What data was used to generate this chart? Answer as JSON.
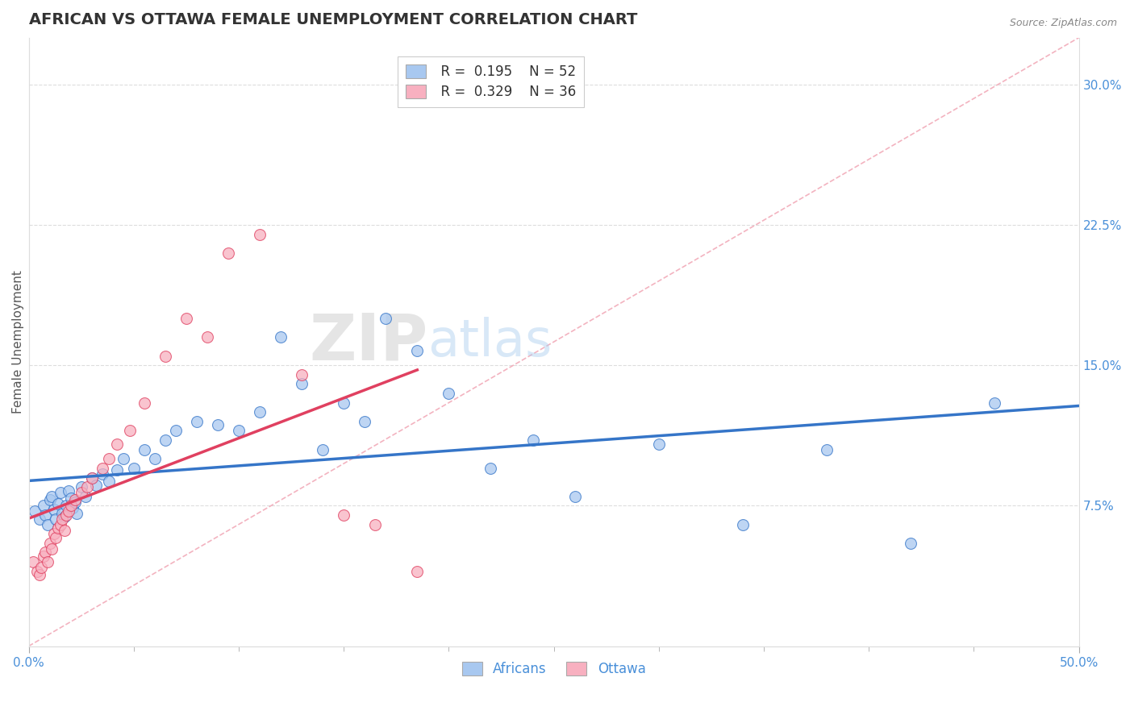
{
  "title": "AFRICAN VS OTTAWA FEMALE UNEMPLOYMENT CORRELATION CHART",
  "source_text": "Source: ZipAtlas.com",
  "ylabel": "Female Unemployment",
  "xlim": [
    0.0,
    0.5
  ],
  "ylim": [
    0.0,
    0.325
  ],
  "yticks_right": [
    0.075,
    0.15,
    0.225,
    0.3
  ],
  "yticklabels_right": [
    "7.5%",
    "15.0%",
    "22.5%",
    "30.0%"
  ],
  "watermark_zip": "ZIP",
  "watermark_atlas": "atlas",
  "legend_label1": "Africans",
  "legend_label2": "Ottawa",
  "color_blue": "#A8C8F0",
  "color_blue_line": "#3575C8",
  "color_pink": "#F8B0C0",
  "color_pink_line": "#E04060",
  "color_diag": "#F0A0B0",
  "africans_x": [
    0.003,
    0.005,
    0.007,
    0.008,
    0.009,
    0.01,
    0.011,
    0.012,
    0.013,
    0.014,
    0.015,
    0.016,
    0.017,
    0.018,
    0.019,
    0.02,
    0.021,
    0.022,
    0.023,
    0.025,
    0.027,
    0.03,
    0.032,
    0.035,
    0.038,
    0.042,
    0.045,
    0.05,
    0.055,
    0.06,
    0.065,
    0.07,
    0.08,
    0.09,
    0.1,
    0.11,
    0.12,
    0.13,
    0.14,
    0.15,
    0.16,
    0.17,
    0.185,
    0.2,
    0.22,
    0.24,
    0.26,
    0.3,
    0.34,
    0.38,
    0.42,
    0.46
  ],
  "africans_y": [
    0.072,
    0.068,
    0.075,
    0.07,
    0.065,
    0.078,
    0.08,
    0.073,
    0.068,
    0.076,
    0.082,
    0.071,
    0.069,
    0.075,
    0.083,
    0.079,
    0.074,
    0.077,
    0.071,
    0.085,
    0.08,
    0.09,
    0.086,
    0.092,
    0.088,
    0.094,
    0.1,
    0.095,
    0.105,
    0.1,
    0.11,
    0.115,
    0.12,
    0.118,
    0.115,
    0.125,
    0.165,
    0.14,
    0.105,
    0.13,
    0.12,
    0.175,
    0.158,
    0.135,
    0.095,
    0.11,
    0.08,
    0.108,
    0.065,
    0.105,
    0.055,
    0.13
  ],
  "ottawa_x": [
    0.002,
    0.004,
    0.005,
    0.006,
    0.007,
    0.008,
    0.009,
    0.01,
    0.011,
    0.012,
    0.013,
    0.014,
    0.015,
    0.016,
    0.017,
    0.018,
    0.019,
    0.02,
    0.022,
    0.025,
    0.028,
    0.03,
    0.035,
    0.038,
    0.042,
    0.048,
    0.055,
    0.065,
    0.075,
    0.085,
    0.095,
    0.11,
    0.13,
    0.15,
    0.165,
    0.185
  ],
  "ottawa_y": [
    0.045,
    0.04,
    0.038,
    0.042,
    0.048,
    0.05,
    0.045,
    0.055,
    0.052,
    0.06,
    0.058,
    0.063,
    0.065,
    0.068,
    0.062,
    0.07,
    0.072,
    0.075,
    0.078,
    0.082,
    0.085,
    0.09,
    0.095,
    0.1,
    0.108,
    0.115,
    0.13,
    0.155,
    0.175,
    0.165,
    0.21,
    0.22,
    0.145,
    0.07,
    0.065,
    0.04
  ],
  "title_fontsize": 14,
  "axis_fontsize": 11,
  "tick_fontsize": 11,
  "source_fontsize": 9
}
